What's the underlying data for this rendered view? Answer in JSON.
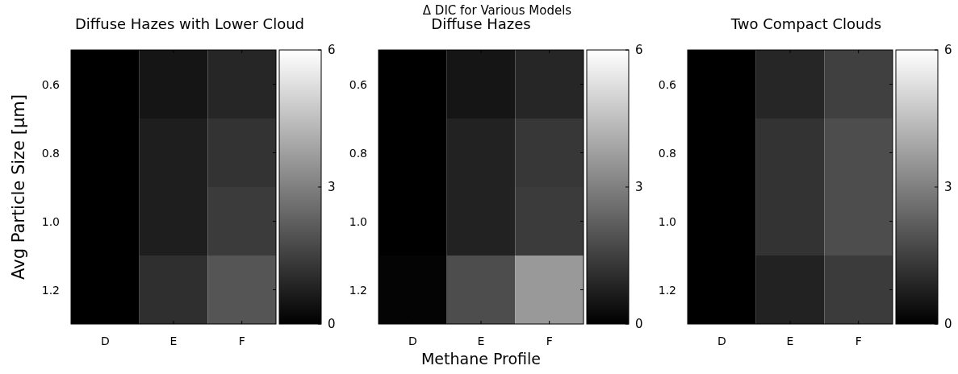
{
  "chart_data": [
    {
      "type": "heatmap",
      "title": "Diffuse Hazes with Lower Cloud",
      "ylabel": "Avg Particle Size [μm]",
      "categories": [
        "D",
        "E",
        "F"
      ],
      "y_categories": [
        "0.6",
        "0.8",
        "1.0",
        "1.2"
      ],
      "cells": [
        [
          0,
          0.5,
          0.9
        ],
        [
          0,
          0.7,
          1.2
        ],
        [
          0,
          0.7,
          1.4
        ],
        [
          0,
          1.1,
          2.0
        ]
      ],
      "clim": [
        0,
        6
      ],
      "cticks": [
        0,
        3,
        6
      ]
    },
    {
      "type": "heatmap",
      "title": "Δ DIC for Various Models",
      "subtitle": "Diffuse Hazes",
      "xlabel": "Methane Profile",
      "categories": [
        "D",
        "E",
        "F"
      ],
      "y_categories": [
        "0.6",
        "0.8",
        "1.0",
        "1.2"
      ],
      "cells": [
        [
          0,
          0.5,
          0.9
        ],
        [
          0,
          0.8,
          1.3
        ],
        [
          0,
          0.8,
          1.4
        ],
        [
          0.1,
          1.8,
          3.6
        ]
      ],
      "clim": [
        0,
        6
      ],
      "cticks": [
        0,
        3,
        6
      ]
    },
    {
      "type": "heatmap",
      "title": "Two Compact Clouds",
      "categories": [
        "D",
        "E",
        "F"
      ],
      "y_categories": [
        "0.6",
        "0.8",
        "1.0",
        "1.2"
      ],
      "cells": [
        [
          0,
          0.9,
          1.5
        ],
        [
          0,
          1.2,
          1.8
        ],
        [
          0,
          1.2,
          1.8
        ],
        [
          0,
          0.8,
          1.4
        ]
      ],
      "clim": [
        0,
        6
      ],
      "cticks": [
        0,
        3,
        6
      ]
    }
  ]
}
